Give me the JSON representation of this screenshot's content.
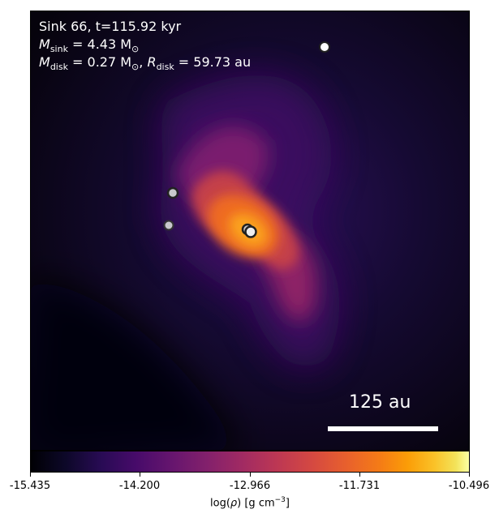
{
  "header": {
    "title_line": "Sink 66, t=115.92 kyr",
    "msink_symbol": "M",
    "msink_sub": "sink",
    "msink_value": " = 4.43 M",
    "msink_unit_sub": "⊙",
    "mdisk_symbol": "M",
    "mdisk_sub": "disk",
    "mdisk_value": " = 0.27 M",
    "mdisk_unit_sub": "⊙",
    "sep": ", ",
    "rdisk_symbol": "R",
    "rdisk_sub": "disk",
    "rdisk_value": " = 59.73 au"
  },
  "scale_bar": {
    "label": "125 au"
  },
  "colorbar": {
    "colormap": "inferno",
    "ticks": [
      "-15.435",
      "-14.200",
      "-12.966",
      "-11.731",
      "-10.496"
    ],
    "label_prefix": "log(",
    "label_rho": "ρ",
    "label_units": ") [g cm",
    "label_exp": "−3",
    "label_end": "]"
  },
  "sinks": [
    {
      "name": "sink-top-right"
    },
    {
      "name": "sink-left-upper"
    },
    {
      "name": "sink-left-lower"
    },
    {
      "name": "sink-central-a"
    },
    {
      "name": "sink-central-b"
    }
  ],
  "colors": {
    "background": "#07040f",
    "outer_envelope": "#1c0c3c",
    "mid_envelope": "#5d1570",
    "inner": "#c43f4a",
    "core": "#f57d15",
    "peak": "#fba21a"
  }
}
